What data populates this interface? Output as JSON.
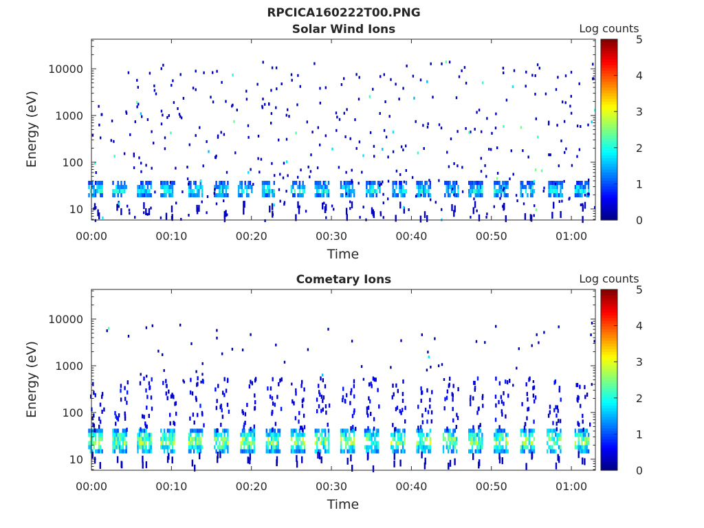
{
  "figure": {
    "title": "RPCICA160222T00.PNG"
  },
  "chart_data": [
    {
      "type": "heatmap",
      "title": "Solar Wind Ions",
      "xlabel": "Time",
      "ylabel": "Energy (eV)",
      "y_scale": "log",
      "ylim": [
        5.8,
        43000
      ],
      "x_range_min": [
        0,
        63
      ],
      "x_tick_labels": [
        "00:00",
        "00:10",
        "00:20",
        "00:30",
        "00:40",
        "00:50",
        "01:00"
      ],
      "x_tick_values_min": [
        0,
        10,
        20,
        30,
        40,
        50,
        60
      ],
      "y_tick_labels": [
        "10",
        "100",
        "1000",
        "10000"
      ],
      "y_tick_values": [
        10,
        100,
        1000,
        10000
      ],
      "colorbar": {
        "label": "Log counts",
        "range": [
          0,
          5
        ],
        "ticks": [
          "0",
          "1",
          "2",
          "3",
          "4",
          "5"
        ],
        "colormap": "jet"
      },
      "band_centers_min": [
        0.5,
        3.5,
        6.6,
        9.5,
        13.0,
        16.2,
        19.2,
        22.2,
        25.8,
        28.8,
        32.0,
        35.2,
        38.5,
        41.5,
        45.0,
        48.0,
        51.2,
        54.5,
        58.0,
        61.3
      ],
      "bands": [
        {
          "energy_range_eV": [
            18,
            40
          ],
          "peak_log_counts": 2.2
        }
      ],
      "scattered_counts": {
        "energy_range_eV": [
          6,
          15000
        ],
        "typical_log_counts": 0.3
      }
    },
    {
      "type": "heatmap",
      "title": "Cometary Ions",
      "xlabel": "Time",
      "ylabel": "Energy (eV)",
      "y_scale": "log",
      "ylim": [
        5.8,
        43000
      ],
      "x_range_min": [
        0,
        63
      ],
      "x_tick_labels": [
        "00:00",
        "00:10",
        "00:20",
        "00:30",
        "00:40",
        "00:50",
        "01:00"
      ],
      "x_tick_values_min": [
        0,
        10,
        20,
        30,
        40,
        50,
        60
      ],
      "y_tick_labels": [
        "10",
        "100",
        "1000",
        "10000"
      ],
      "y_tick_values": [
        10,
        100,
        1000,
        10000
      ],
      "colorbar": {
        "label": "Log counts",
        "range": [
          0,
          5
        ],
        "ticks": [
          "0",
          "1",
          "2",
          "3",
          "4",
          "5"
        ],
        "colormap": "jet"
      },
      "band_centers_min": [
        0.5,
        3.5,
        6.6,
        9.5,
        13.0,
        16.2,
        19.5,
        22.7,
        25.8,
        28.8,
        32.0,
        35.0,
        38.3,
        41.5,
        44.8,
        48.0,
        51.2,
        54.5,
        57.8,
        61.3
      ],
      "bands": [
        {
          "energy_range_eV": [
            14,
            45
          ],
          "peak_log_counts": 3.0
        },
        {
          "energy_range_eV": [
            45,
            600
          ],
          "peak_log_counts": 0.6
        }
      ],
      "scattered_counts": {
        "energy_range_eV": [
          400,
          9000
        ],
        "typical_log_counts": 0.2
      }
    }
  ]
}
